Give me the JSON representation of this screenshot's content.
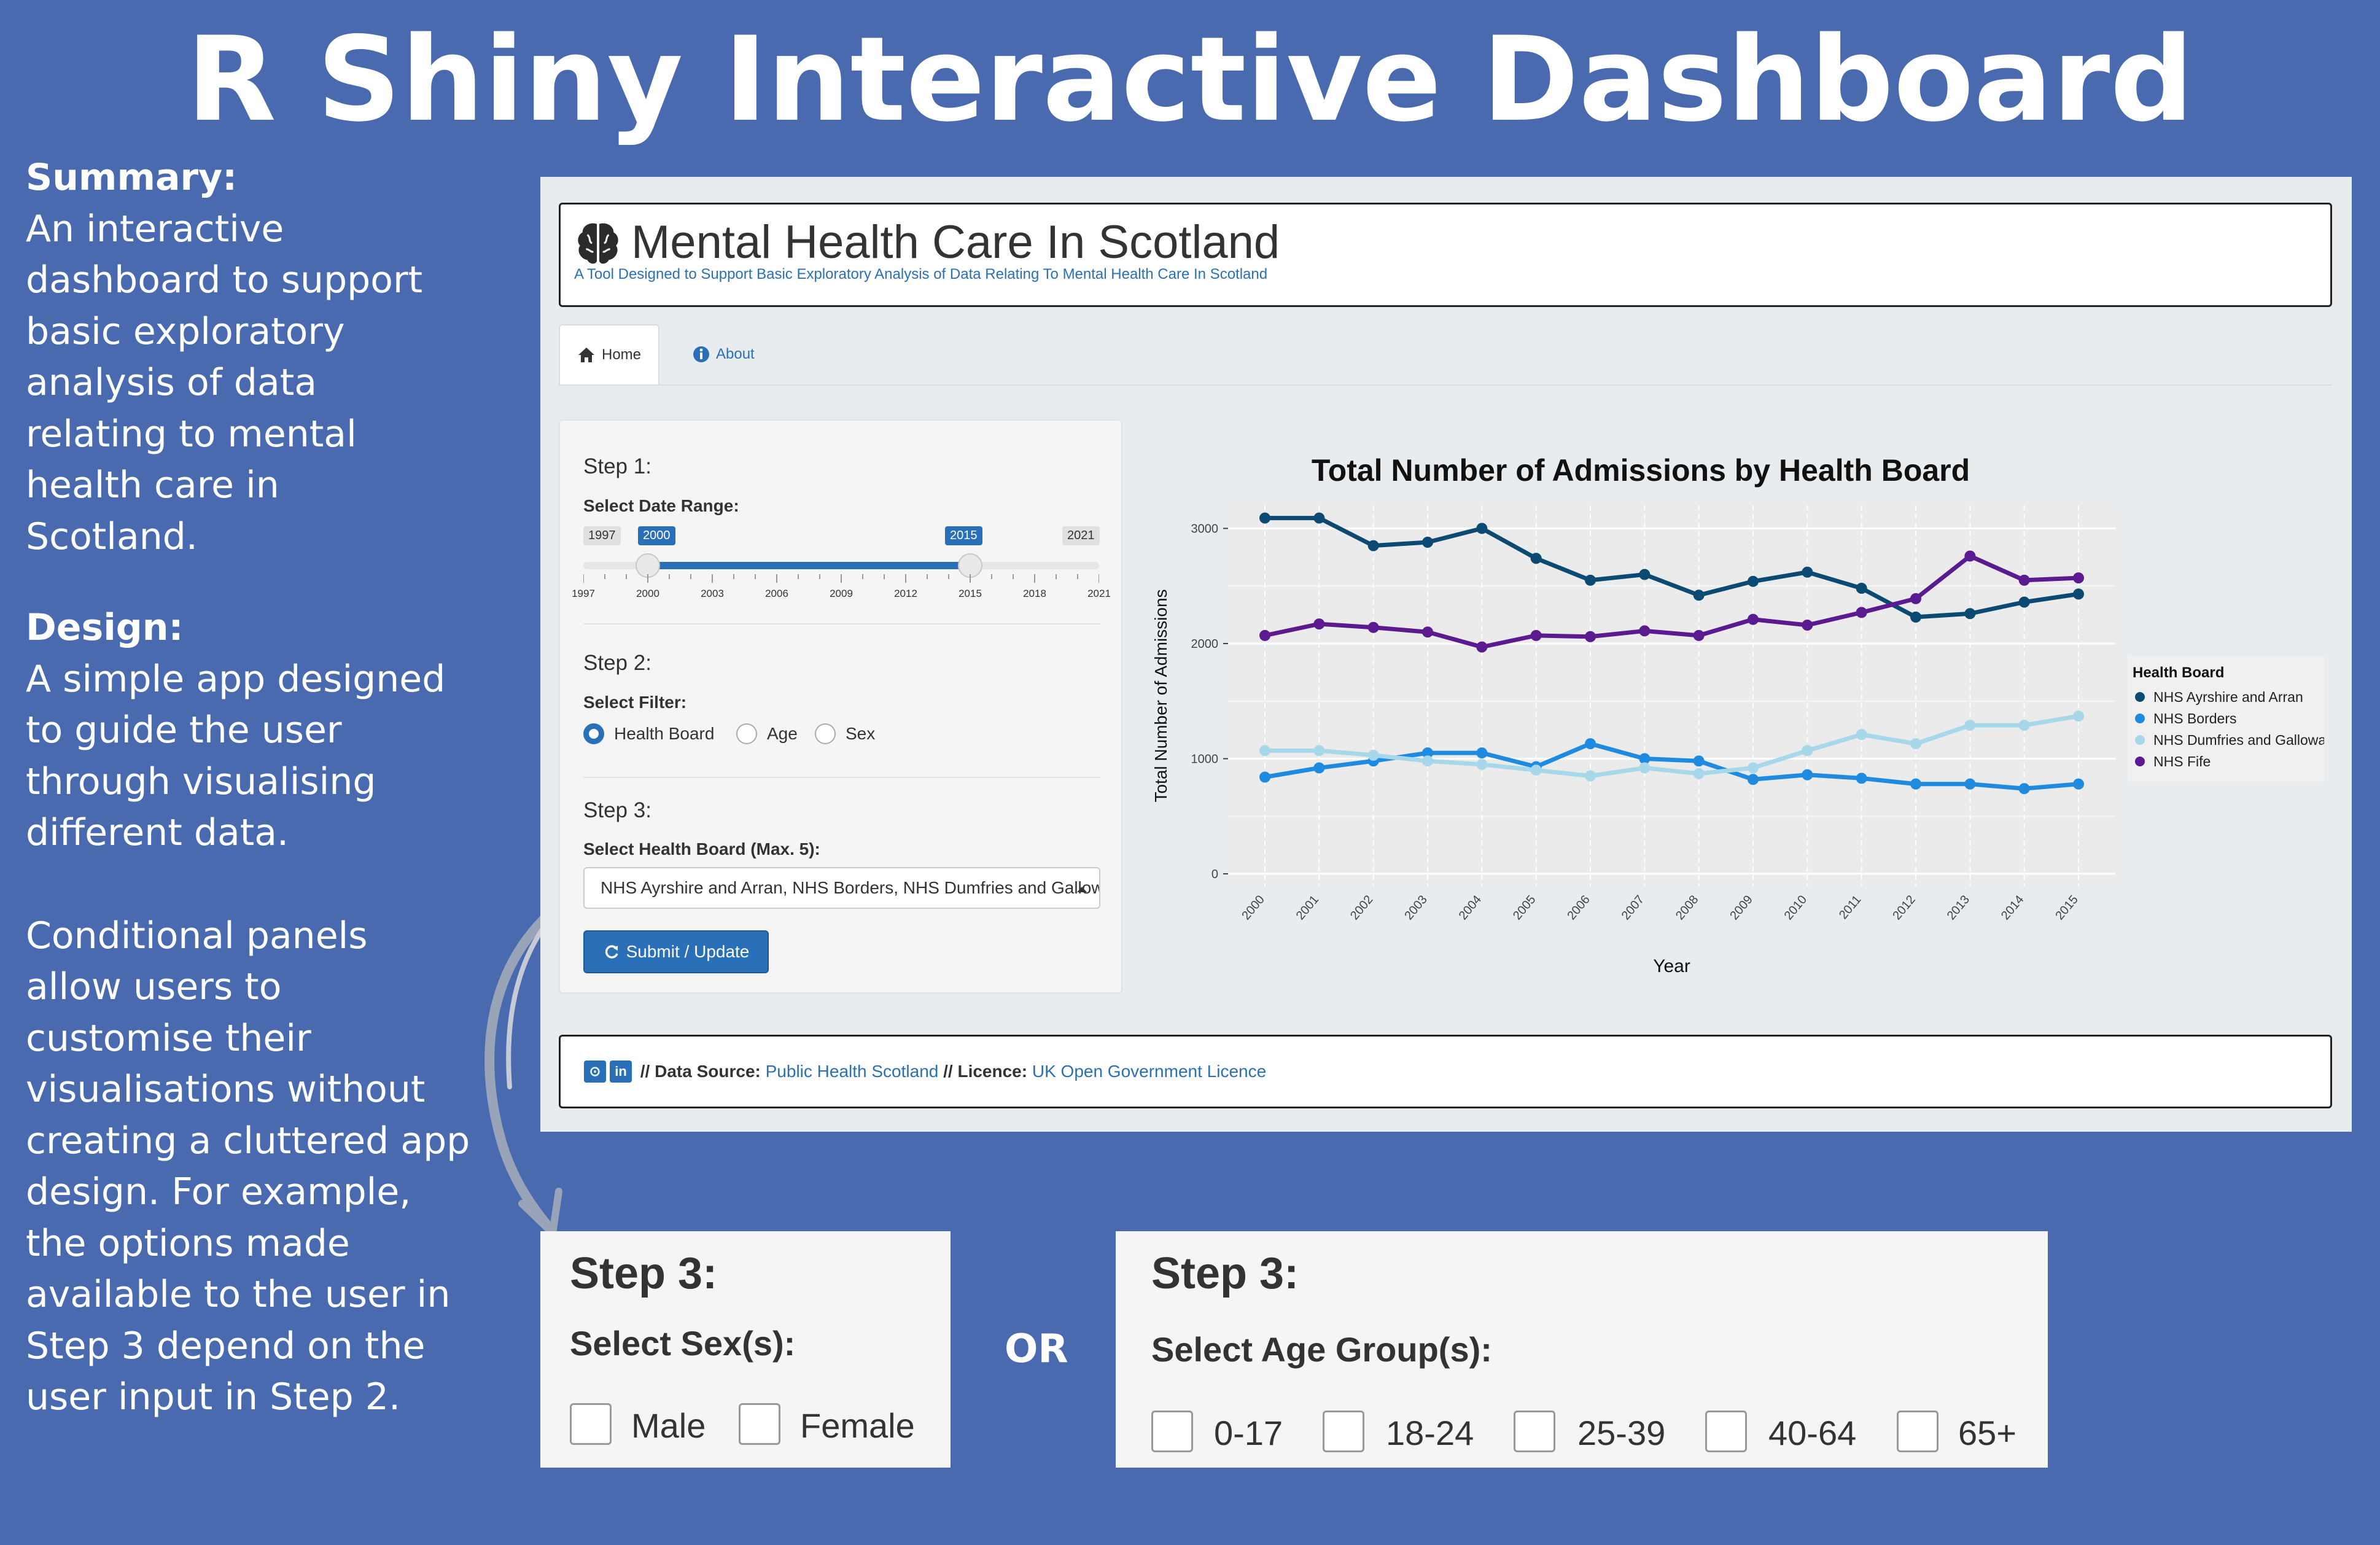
{
  "poster": {
    "title": "R Shiny Interactive Dashboard",
    "summary_heading": "Summary:",
    "summary_lines": [
      "An interactive",
      "dashboard to support",
      "basic exploratory",
      "analysis of data",
      "relating to mental",
      "health care in",
      "Scotland."
    ],
    "design_heading": "Design:",
    "design_lines": [
      "A simple app designed",
      "to guide the user",
      "through visualising",
      "different data."
    ],
    "conditional_lines": [
      "Conditional panels",
      "allow users to",
      "customise their",
      "visualisations without",
      "creating a cluttered app",
      "design. For example,",
      "the options made",
      "available to the user in",
      "Step 3 depend on the",
      "user input in Step 2."
    ],
    "or_label": "OR"
  },
  "app": {
    "title": "Mental Health Care In Scotland",
    "subtitle": "A Tool Designed to Support Basic Exploratory Analysis of Data Relating To Mental Health Care In Scotland",
    "tabs": [
      {
        "label": "Home",
        "icon": "home-icon"
      },
      {
        "label": "About",
        "icon": "info-icon"
      }
    ],
    "step1": {
      "heading": "Step 1:",
      "label": "Select Date Range:",
      "min": "1997",
      "max": "2021",
      "from": "2000",
      "to": "2015",
      "ticks": [
        "1997",
        "2000",
        "2003",
        "2006",
        "2009",
        "2012",
        "2015",
        "2018",
        "2021"
      ]
    },
    "step2": {
      "heading": "Step 2:",
      "label": "Select Filter:",
      "options": [
        "Health Board",
        "Age",
        "Sex"
      ],
      "selected": "Health Board"
    },
    "step3": {
      "heading": "Step 3:",
      "label": "Select Health Board (Max. 5):",
      "value": "NHS Ayrshire and Arran, NHS Borders, NHS Dumfries and Galloway, NHS Fife"
    },
    "submit_label": "Submit / Update",
    "footer": {
      "data_source_label": "// Data Source:",
      "data_source_link": "Public Health Scotland",
      "licence_label": "// Licence:",
      "licence_link": "UK Open Government Licence"
    }
  },
  "chart_data": {
    "type": "line",
    "title": "Total Number of Admissions by Health Board",
    "xlabel": "Year",
    "ylabel": "Total Number of Admissions",
    "x": [
      2000,
      2001,
      2002,
      2003,
      2004,
      2005,
      2006,
      2007,
      2008,
      2009,
      2010,
      2011,
      2012,
      2013,
      2014,
      2015
    ],
    "ylim": [
      0,
      3200
    ],
    "yticks": [
      0,
      1000,
      2000,
      3000
    ],
    "legend_title": "Health Board",
    "legend_position": "right",
    "grid": true,
    "series": [
      {
        "name": "NHS Ayrshire and Arran",
        "color": "#0b4a73",
        "values": [
          3090,
          3090,
          2850,
          2880,
          3000,
          2740,
          2550,
          2600,
          2420,
          2540,
          2620,
          2480,
          2230,
          2260,
          2360,
          2430
        ]
      },
      {
        "name": "NHS Borders",
        "color": "#1f8be0",
        "values": [
          840,
          920,
          980,
          1050,
          1050,
          930,
          1130,
          1000,
          980,
          820,
          860,
          830,
          780,
          780,
          740,
          780
        ]
      },
      {
        "name": "NHS Dumfries and Galloway",
        "color": "#a6d8ea",
        "values": [
          1070,
          1070,
          1030,
          980,
          950,
          900,
          850,
          920,
          870,
          920,
          1070,
          1210,
          1130,
          1290,
          1290,
          1370
        ]
      },
      {
        "name": "NHS Fife",
        "color": "#5b1a8f",
        "values": [
          2070,
          2170,
          2140,
          2100,
          1970,
          2070,
          2060,
          2110,
          2070,
          2210,
          2160,
          2270,
          2390,
          2760,
          2550,
          2570
        ]
      }
    ]
  },
  "cards": {
    "sex": {
      "heading": "Step 3:",
      "label": "Select Sex(s):",
      "options": [
        "Male",
        "Female"
      ]
    },
    "age": {
      "heading": "Step 3:",
      "label": "Select Age Group(s):",
      "options": [
        "0-17",
        "18-24",
        "25-39",
        "40-64",
        "65+"
      ]
    }
  }
}
